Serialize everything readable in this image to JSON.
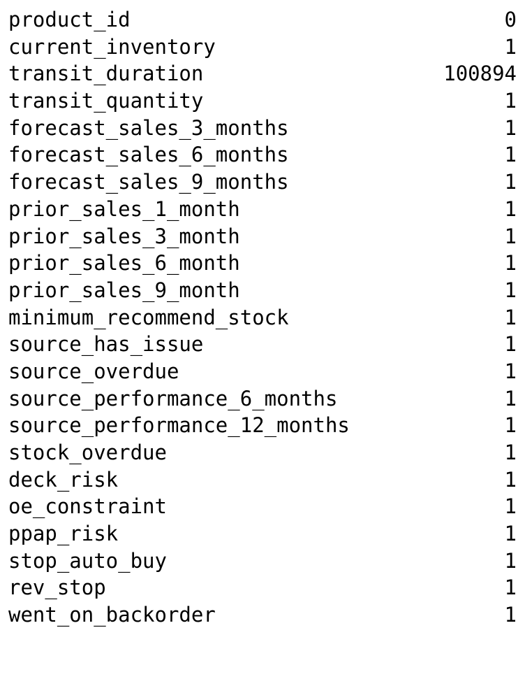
{
  "rows": [
    {
      "name": "product_id",
      "value": "0"
    },
    {
      "name": "current_inventory",
      "value": "1"
    },
    {
      "name": "transit_duration",
      "value": "100894"
    },
    {
      "name": "transit_quantity",
      "value": "1"
    },
    {
      "name": "forecast_sales_3_months",
      "value": "1"
    },
    {
      "name": "forecast_sales_6_months",
      "value": "1"
    },
    {
      "name": "forecast_sales_9_months",
      "value": "1"
    },
    {
      "name": "prior_sales_1_month",
      "value": "1"
    },
    {
      "name": "prior_sales_3_month",
      "value": "1"
    },
    {
      "name": "prior_sales_6_month",
      "value": "1"
    },
    {
      "name": "prior_sales_9_month",
      "value": "1"
    },
    {
      "name": "minimum_recommend_stock",
      "value": "1"
    },
    {
      "name": "source_has_issue",
      "value": "1"
    },
    {
      "name": "source_overdue",
      "value": "1"
    },
    {
      "name": "source_performance_6_months",
      "value": "1"
    },
    {
      "name": "source_performance_12_months",
      "value": "1"
    },
    {
      "name": "stock_overdue",
      "value": "1"
    },
    {
      "name": "deck_risk",
      "value": "1"
    },
    {
      "name": "oe_constraint",
      "value": "1"
    },
    {
      "name": "ppap_risk",
      "value": "1"
    },
    {
      "name": "stop_auto_buy",
      "value": "1"
    },
    {
      "name": "rev_stop",
      "value": "1"
    },
    {
      "name": "went_on_backorder",
      "value": "1"
    }
  ]
}
